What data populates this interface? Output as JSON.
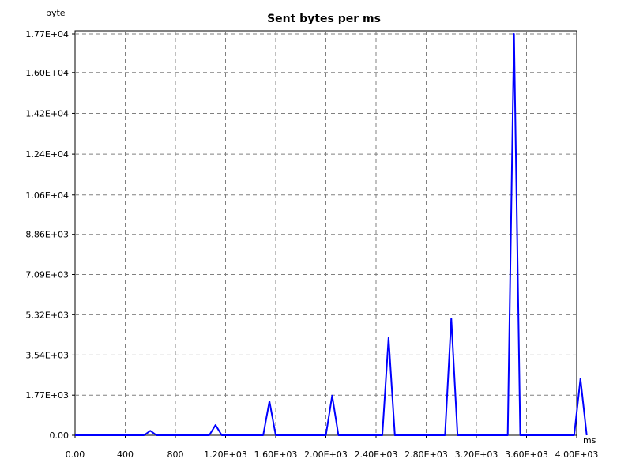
{
  "chart_data": {
    "type": "line",
    "title": "Sent bytes per ms",
    "xlabel": "ms",
    "ylabel": "byte",
    "xlim": [
      0,
      4000
    ],
    "ylim": [
      0,
      17700
    ],
    "grid": true,
    "x_ticks": [
      {
        "value": 0,
        "label": "0.00"
      },
      {
        "value": 400,
        "label": "400"
      },
      {
        "value": 800,
        "label": "800"
      },
      {
        "value": 1200,
        "label": "1.20E+03"
      },
      {
        "value": 1600,
        "label": "1.60E+03"
      },
      {
        "value": 2000,
        "label": "2.00E+03"
      },
      {
        "value": 2400,
        "label": "2.40E+03"
      },
      {
        "value": 2800,
        "label": "2.80E+03"
      },
      {
        "value": 3200,
        "label": "3.20E+03"
      },
      {
        "value": 3600,
        "label": "3.60E+03"
      },
      {
        "value": 4000,
        "label": "4.00E+03"
      }
    ],
    "y_ticks": [
      {
        "value": 0,
        "label": "0.00"
      },
      {
        "value": 1770,
        "label": "1.77E+03"
      },
      {
        "value": 3540,
        "label": "3.54E+03"
      },
      {
        "value": 5320,
        "label": "5.32E+03"
      },
      {
        "value": 7090,
        "label": "7.09E+03"
      },
      {
        "value": 8860,
        "label": "8.86E+03"
      },
      {
        "value": 10600,
        "label": "1.06E+04"
      },
      {
        "value": 12400,
        "label": "1.24E+04"
      },
      {
        "value": 14200,
        "label": "1.42E+04"
      },
      {
        "value": 16000,
        "label": "1.60E+04"
      },
      {
        "value": 17700,
        "label": "1.77E+04"
      }
    ],
    "series": [
      {
        "color": "#0000ff",
        "x": [
          0,
          550,
          600,
          650,
          1070,
          1120,
          1170,
          1500,
          1550,
          1600,
          2000,
          2050,
          2100,
          2450,
          2500,
          2550,
          2950,
          3000,
          3050,
          3450,
          3500,
          3550,
          3600,
          3980,
          4030,
          4080
        ],
        "y": [
          0,
          0,
          200,
          0,
          0,
          450,
          0,
          0,
          1500,
          0,
          0,
          1750,
          0,
          0,
          4300,
          0,
          0,
          5150,
          0,
          0,
          17700,
          0,
          0,
          0,
          2500,
          0
        ]
      }
    ]
  }
}
